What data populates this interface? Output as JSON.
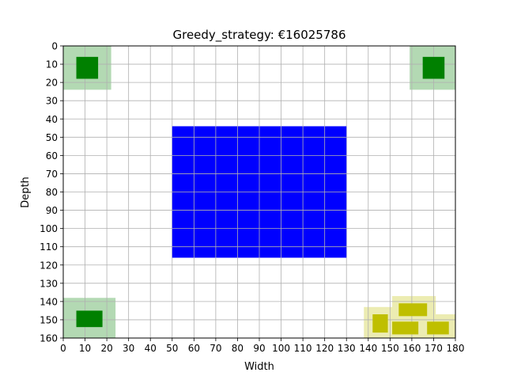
{
  "chart_data": {
    "type": "layout",
    "title": "Greedy_strategy: €16025786",
    "xlabel": "Width",
    "ylabel": "Depth",
    "xlim": [
      0,
      180
    ],
    "ylim": [
      0,
      160
    ],
    "y_inverted": true,
    "grid": true,
    "x_ticks": [
      0,
      10,
      20,
      30,
      40,
      50,
      60,
      70,
      80,
      90,
      100,
      110,
      120,
      130,
      140,
      150,
      160,
      170,
      180
    ],
    "y_ticks": [
      0,
      10,
      20,
      30,
      40,
      50,
      60,
      70,
      80,
      90,
      100,
      110,
      120,
      130,
      140,
      150,
      160
    ],
    "main_block": {
      "x0": 50,
      "x1": 130,
      "y0": 44,
      "y1": 116,
      "color": "#0000ff"
    },
    "items": [
      {
        "color": "#008000",
        "halo_color": "#b3d9b3",
        "x0": 6,
        "x1": 16,
        "y0": 6,
        "y1": 18,
        "halo": [
          0,
          22,
          0,
          24
        ]
      },
      {
        "color": "#008000",
        "halo_color": "#b3d9b3",
        "x0": 165,
        "x1": 175,
        "y0": 6,
        "y1": 18,
        "halo": [
          159,
          180,
          0,
          24
        ]
      },
      {
        "color": "#008000",
        "halo_color": "#b3d9b3",
        "x0": 6,
        "x1": 18,
        "y0": 145,
        "y1": 154,
        "halo": [
          0,
          24,
          138,
          160
        ]
      },
      {
        "color": "#bfbf00",
        "halo_color": "#ececb2",
        "x0": 142,
        "x1": 149,
        "y0": 147,
        "y1": 157,
        "halo": [
          138,
          152,
          143,
          160
        ]
      },
      {
        "color": "#bfbf00",
        "halo_color": "#ececb2",
        "x0": 154,
        "x1": 167,
        "y0": 141,
        "y1": 148,
        "halo": [
          151,
          171,
          137,
          152
        ]
      },
      {
        "color": "#bfbf00",
        "halo_color": "#ececb2",
        "x0": 151,
        "x1": 163,
        "y0": 151,
        "y1": 158,
        "halo": [
          147,
          168,
          147,
          160
        ]
      },
      {
        "color": "#bfbf00",
        "halo_color": "#ececb2",
        "x0": 167,
        "x1": 177,
        "y0": 151,
        "y1": 158,
        "halo": [
          162,
          181,
          147,
          160
        ]
      }
    ]
  }
}
